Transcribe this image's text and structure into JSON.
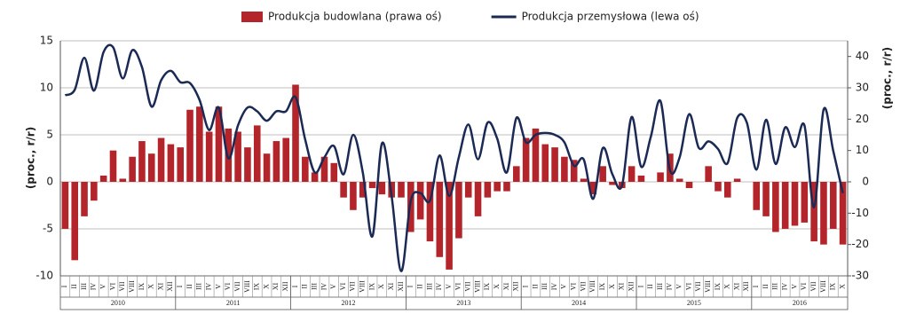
{
  "chart_data": {
    "type": "bar",
    "ylabel": "(proc., r/r)",
    "y2label": "(proc., r/r)",
    "categories": [
      "I",
      "II",
      "III",
      "IV",
      "V",
      "VI",
      "VII",
      "VIII",
      "IX",
      "X",
      "XI",
      "XII",
      "I",
      "II",
      "III",
      "IV",
      "V",
      "VI",
      "VII",
      "VIII",
      "IX",
      "X",
      "XI",
      "XII",
      "I",
      "II",
      "III",
      "IV",
      "V",
      "VI",
      "VII",
      "VIII",
      "IX",
      "X",
      "XI",
      "XII",
      "I",
      "II",
      "III",
      "IV",
      "V",
      "VI",
      "VII",
      "VIII",
      "IX",
      "X",
      "XI",
      "XII",
      "I",
      "II",
      "III",
      "IV",
      "V",
      "VI",
      "VII",
      "VIII",
      "IX",
      "X",
      "XI",
      "XII",
      "I",
      "II",
      "III",
      "IV",
      "V",
      "VI",
      "VII",
      "VIII",
      "IX",
      "X",
      "XI",
      "XII",
      "I",
      "II",
      "III",
      "IV",
      "V",
      "VI",
      "VII",
      "VIII",
      "IX",
      "X"
    ],
    "years": [
      "2010",
      "2011",
      "2012",
      "2013",
      "2014",
      "2015",
      "2016"
    ],
    "series": [
      {
        "name": "Produkcja budowlana (prawa oś)",
        "type": "bar",
        "axis": "y2",
        "color": "#b3252b",
        "values": [
          -15,
          -25,
          -11,
          -6,
          2,
          10,
          1,
          8,
          13,
          9,
          14,
          12,
          11,
          23,
          24,
          16,
          24,
          17,
          16,
          11,
          18,
          9,
          13,
          14,
          31,
          8,
          3,
          8,
          6,
          -5,
          -9,
          -5,
          -2,
          -4,
          -5,
          -5,
          -16,
          -12,
          -19,
          -24,
          -28,
          -18,
          -5,
          -11,
          -5,
          -3,
          -3,
          5,
          14,
          17,
          12,
          11,
          8,
          7,
          1,
          -4,
          5,
          -1,
          -2,
          5,
          2,
          0,
          3,
          9,
          1,
          -2,
          0,
          5,
          -3,
          -5,
          1,
          0,
          -9,
          -11,
          -16,
          -15,
          -14,
          -13,
          -19,
          -20,
          -15,
          -20
        ]
      },
      {
        "name": "Produkcja przemysłowa (lewa oś)",
        "type": "line",
        "axis": "y",
        "color": "#1b2a55",
        "values": [
          9.2,
          9.8,
          13.2,
          9.7,
          13.8,
          14.3,
          11.0,
          14.0,
          12.2,
          8.0,
          10.8,
          11.8,
          10.6,
          10.5,
          8.7,
          5.5,
          7.9,
          2.5,
          6.0,
          7.9,
          7.5,
          6.5,
          7.5,
          7.5,
          9.0,
          4.5,
          1.0,
          2.6,
          3.8,
          0.8,
          5.0,
          1.0,
          -5.8,
          4.1,
          -1.5,
          -9.5,
          -2.0,
          -1.2,
          -2.0,
          2.8,
          -1.5,
          2.6,
          6.1,
          2.4,
          6.3,
          4.6,
          1.0,
          6.8,
          4.2,
          5.0,
          5.2,
          5.0,
          4.2,
          1.7,
          2.4,
          -1.8,
          3.6,
          0.8,
          -0.4,
          6.9,
          1.6,
          4.8,
          8.6,
          1.2,
          2.6,
          7.2,
          3.6,
          4.3,
          3.5,
          2.0,
          6.8,
          6.3,
          1.3,
          6.6,
          1.9,
          5.8,
          3.7,
          6.0,
          -2.7,
          7.7,
          3.3,
          -1.2
        ]
      }
    ],
    "ylim": [
      -10,
      15
    ],
    "yticks": [
      -10,
      -5,
      0,
      5,
      10,
      15
    ],
    "y2lim": [
      -30,
      45
    ],
    "y2ticks": [
      -30,
      -20,
      -10,
      0,
      10,
      20,
      30,
      40
    ],
    "grid": true,
    "legend": "top"
  }
}
